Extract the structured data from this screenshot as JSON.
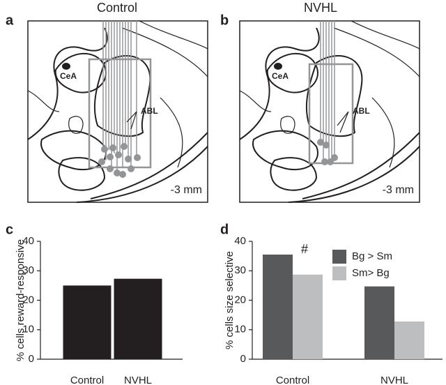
{
  "diagrams": [
    {
      "panel": "a",
      "title": "Control",
      "regions": [
        "CeA",
        "ABL"
      ],
      "scale": "-3 mm"
    },
    {
      "panel": "b",
      "title": "NVHL",
      "regions": [
        "CeA",
        "ABL"
      ],
      "scale": "-3 mm"
    }
  ],
  "chart_data": [
    {
      "type": "bar",
      "panel": "c",
      "ylabel": "% cells reward-responsive",
      "categories": [
        "Control",
        "NVHL"
      ],
      "values": [
        25,
        27.3
      ],
      "color": "#231f20",
      "ylim": [
        0,
        40
      ],
      "yticks": [
        0,
        10,
        20,
        30,
        40
      ]
    },
    {
      "type": "bar",
      "panel": "d",
      "ylabel": "% cells size selective",
      "annotation": "#",
      "categories": [
        "Control",
        "NVHL"
      ],
      "series": [
        {
          "name": "Bg > Sm",
          "color": "#58595b",
          "values": [
            35.5,
            24.7
          ]
        },
        {
          "name": "Sm> Bg",
          "color": "#bcbec0",
          "values": [
            28.7,
            12.8
          ]
        }
      ],
      "ylim": [
        0,
        40
      ],
      "yticks": [
        0,
        10,
        20,
        30,
        40
      ],
      "legend": "top-right"
    }
  ]
}
